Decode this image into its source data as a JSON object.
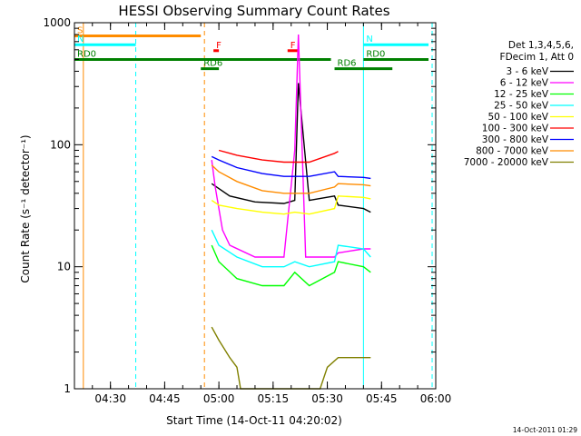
{
  "chart_data": {
    "type": "line",
    "title": "HESSI Observing Summary Count Rates",
    "xlabel": "Start Time (14-Oct-11 04:20:02)",
    "ylabel": "Count Rate (s⁻¹ detector⁻¹)",
    "y_scale": "log",
    "ylim": [
      1,
      1000
    ],
    "xlim": [
      "04:20:02",
      "06:00:00"
    ],
    "x_ticks": [
      "04:30",
      "04:45",
      "05:00",
      "05:15",
      "05:30",
      "05:45",
      "06:00"
    ],
    "y_ticks": [
      "1",
      "10",
      "100",
      "1000"
    ],
    "legend_header": [
      "Det 1,3,4,5,6,",
      "FDecim 1, Att 0"
    ],
    "legend_position": "right",
    "footer_timestamp": "14-Oct-2011 01:29",
    "series": [
      {
        "name": "3 - 6 keV",
        "color": "#000000",
        "x": [
          "04:58",
          "05:03",
          "05:10",
          "05:18",
          "05:21",
          "05:22",
          "05:25",
          "05:32",
          "05:33",
          "05:40",
          "05:42"
        ],
        "values": [
          48,
          38,
          34,
          33,
          35,
          320,
          35,
          38,
          32,
          30,
          28
        ]
      },
      {
        "name": "6 - 12 keV",
        "color": "#ff00ff",
        "x": [
          "04:58",
          "04:59",
          "05:01",
          "05:03",
          "05:10",
          "05:18",
          "05:21",
          "05:22",
          "05:24",
          "05:32",
          "05:33",
          "05:40",
          "05:42"
        ],
        "values": [
          75,
          45,
          20,
          15,
          12,
          12,
          90,
          800,
          12,
          12,
          13,
          14,
          14
        ]
      },
      {
        "name": "12 - 25 keV",
        "color": "#00ff00",
        "x": [
          "04:58",
          "05:00",
          "05:05",
          "05:12",
          "05:18",
          "05:21",
          "05:25",
          "05:32",
          "05:33",
          "05:40",
          "05:42"
        ],
        "values": [
          15,
          11,
          8,
          7,
          7,
          9,
          7,
          9,
          11,
          10,
          9
        ]
      },
      {
        "name": "25 - 50 keV",
        "color": "#00ffff",
        "x": [
          "04:58",
          "05:00",
          "05:05",
          "05:12",
          "05:18",
          "05:21",
          "05:25",
          "05:32",
          "05:33",
          "05:40",
          "05:42"
        ],
        "values": [
          20,
          15,
          12,
          10,
          10,
          11,
          10,
          11,
          15,
          14,
          12
        ]
      },
      {
        "name": "50 - 100 keV",
        "color": "#ffff00",
        "x": [
          "04:58",
          "05:00",
          "05:05",
          "05:12",
          "05:18",
          "05:21",
          "05:25",
          "05:32",
          "05:33",
          "05:40",
          "05:42"
        ],
        "values": [
          35,
          32,
          30,
          28,
          27,
          28,
          27,
          30,
          38,
          37,
          36
        ]
      },
      {
        "name": "100 - 300 keV",
        "color": "#ff0000",
        "x": [
          "05:00",
          "05:05",
          "05:12",
          "05:18",
          "05:21",
          "05:25",
          "05:32",
          "05:33"
        ],
        "values": [
          90,
          82,
          75,
          72,
          72,
          72,
          85,
          88
        ]
      },
      {
        "name": "300 - 800 keV",
        "color": "#0000ff",
        "x": [
          "04:58",
          "05:00",
          "05:05",
          "05:12",
          "05:18",
          "05:21",
          "05:25",
          "05:32",
          "05:33",
          "05:40",
          "05:42"
        ],
        "values": [
          80,
          75,
          65,
          58,
          55,
          55,
          55,
          60,
          55,
          54,
          53
        ]
      },
      {
        "name": "800 - 7000 keV",
        "color": "#ff8c00",
        "x": [
          "04:58",
          "05:00",
          "05:05",
          "05:12",
          "05:18",
          "05:21",
          "05:25",
          "05:32",
          "05:33",
          "05:40",
          "05:42"
        ],
        "values": [
          68,
          60,
          50,
          42,
          40,
          40,
          40,
          45,
          48,
          47,
          46
        ]
      },
      {
        "name": "7000 - 20000 keV",
        "color": "#808000",
        "x": [
          "04:58",
          "05:00",
          "05:03",
          "05:05",
          "05:06",
          "05:28",
          "05:30",
          "05:33",
          "05:42"
        ],
        "values": [
          3.2,
          2.5,
          1.8,
          1.5,
          1.0,
          1.0,
          1.5,
          1.8,
          1.8
        ]
      }
    ],
    "flag_bars": [
      {
        "label": "S",
        "color": "#ff8c00",
        "start": "04:20:02",
        "end": "04:55:00",
        "y": 780
      },
      {
        "label": "N",
        "color": "#00ffff",
        "start": "04:20:02",
        "end": "04:37:00",
        "y": 660
      },
      {
        "label": "N",
        "color": "#00ffff",
        "start": "05:40:00",
        "end": "05:58:00",
        "y": 660
      },
      {
        "label": "F",
        "color": "#ff0000",
        "start": "04:58:30",
        "end": "05:00:00",
        "y": 590
      },
      {
        "label": "F",
        "color": "#ff0000",
        "start": "05:19:00",
        "end": "05:22:00",
        "y": 590
      },
      {
        "label": "RD0",
        "color": "#008000",
        "start": "04:20:02",
        "end": "05:31:00",
        "y": 500
      },
      {
        "label": "RD0",
        "color": "#008000",
        "start": "05:40:00",
        "end": "05:58:00",
        "y": 500
      },
      {
        "label": "RD6",
        "color": "#008000",
        "start": "04:55:00",
        "end": "05:00:00",
        "y": 420
      },
      {
        "label": "RD6",
        "color": "#008000",
        "start": "05:32:00",
        "end": "05:48:00",
        "y": 420
      }
    ],
    "vertical_lines": [
      {
        "time": "04:22:30",
        "color": "#ff8c00",
        "style": "solid"
      },
      {
        "time": "04:37:00",
        "color": "#00ffff",
        "style": "dashed"
      },
      {
        "time": "04:56:00",
        "color": "#ff8c00",
        "style": "dashed"
      },
      {
        "time": "05:40:00",
        "color": "#00ffff",
        "style": "solid"
      },
      {
        "time": "05:59:00",
        "color": "#00ffff",
        "style": "dashed"
      }
    ]
  }
}
